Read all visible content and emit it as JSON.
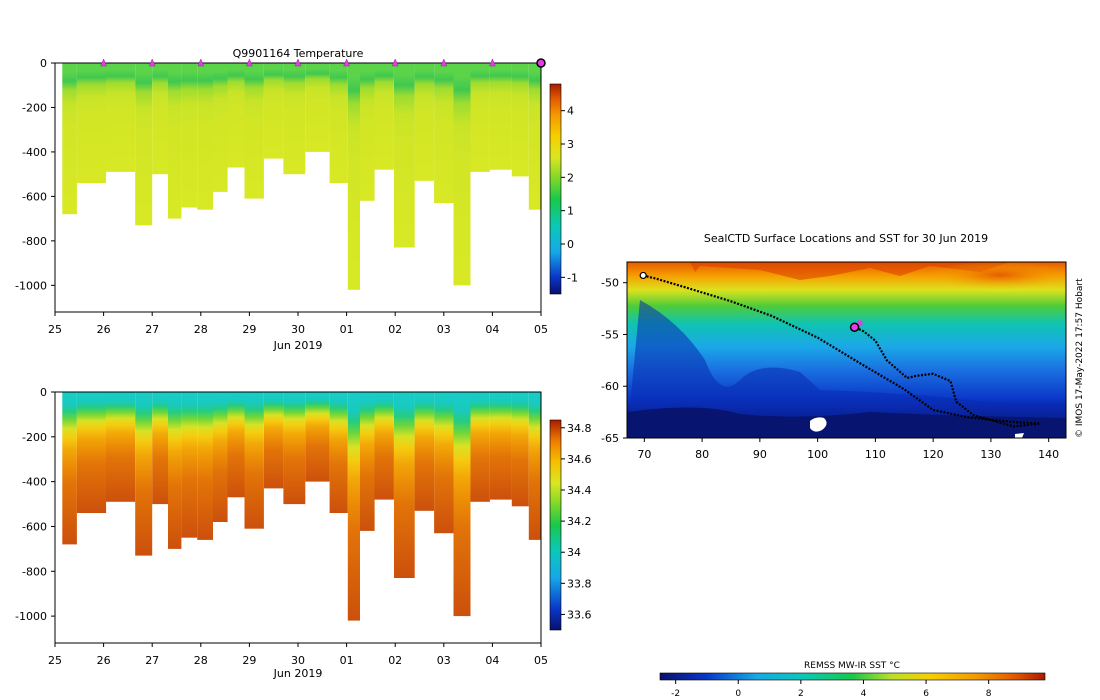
{
  "chart_data": [
    {
      "type": "heatmap",
      "name": "temperature-section",
      "title": "Q9901164  Temperature",
      "xlabel": "Jun 2019",
      "ylabel": "",
      "x_ticks": [
        "25",
        "26",
        "27",
        "28",
        "29",
        "30",
        "01",
        "02",
        "03",
        "04",
        "05"
      ],
      "y_ticks": [
        "0",
        "-200",
        "-400",
        "-600",
        "-800",
        "-1000"
      ],
      "xlim": [
        25,
        35
      ],
      "ylim": [
        -1120,
        0
      ],
      "colorbar": {
        "ticks": [
          "-1",
          "0",
          "1",
          "2",
          "3",
          "4"
        ],
        "range": [
          -1.5,
          4.8
        ]
      },
      "profile_marker_days": [
        26,
        27,
        28,
        29,
        30,
        31,
        32,
        33,
        34
      ],
      "latest_profile_day": 35,
      "max_depth_m": [
        {
          "day": 25.3,
          "depth": 680
        },
        {
          "day": 25.6,
          "depth": 540
        },
        {
          "day": 26.5,
          "depth": 490
        },
        {
          "day": 26.8,
          "depth": 730
        },
        {
          "day": 27.2,
          "depth": 500
        },
        {
          "day": 27.45,
          "depth": 700
        },
        {
          "day": 27.75,
          "depth": 650
        },
        {
          "day": 28.1,
          "depth": 660
        },
        {
          "day": 28.4,
          "depth": 580
        },
        {
          "day": 28.7,
          "depth": 470
        },
        {
          "day": 29.1,
          "depth": 610
        },
        {
          "day": 29.5,
          "depth": 430
        },
        {
          "day": 29.9,
          "depth": 500
        },
        {
          "day": 30.4,
          "depth": 400
        },
        {
          "day": 30.9,
          "depth": 540
        },
        {
          "day": 31.15,
          "depth": 1020
        },
        {
          "day": 31.4,
          "depth": 620
        },
        {
          "day": 31.75,
          "depth": 480
        },
        {
          "day": 32.2,
          "depth": 830
        },
        {
          "day": 32.6,
          "depth": 530
        },
        {
          "day": 33.0,
          "depth": 630
        },
        {
          "day": 33.4,
          "depth": 1000
        },
        {
          "day": 33.7,
          "depth": 490
        },
        {
          "day": 34.2,
          "depth": 480
        },
        {
          "day": 34.6,
          "depth": 510
        },
        {
          "day": 34.9,
          "depth": 660
        }
      ]
    },
    {
      "type": "heatmap",
      "name": "salinity-section",
      "title": "",
      "xlabel": "Jun 2019",
      "ylabel": "",
      "x_ticks": [
        "25",
        "26",
        "27",
        "28",
        "29",
        "30",
        "01",
        "02",
        "03",
        "04",
        "05"
      ],
      "y_ticks": [
        "0",
        "-200",
        "-400",
        "-600",
        "-800",
        "-1000"
      ],
      "xlim": [
        25,
        35
      ],
      "ylim": [
        -1120,
        0
      ],
      "colorbar": {
        "ticks": [
          "33.6",
          "33.8",
          "34",
          "34.2",
          "34.4",
          "34.6",
          "34.8"
        ],
        "range": [
          33.5,
          34.85
        ]
      }
    },
    {
      "type": "heatmap",
      "name": "sst-map",
      "title": "SealCTD Surface Locations and SST for 30 Jun 2019",
      "xlabel": "",
      "ylabel": "",
      "x_ticks": [
        "70",
        "80",
        "90",
        "100",
        "110",
        "120",
        "130",
        "140"
      ],
      "y_ticks": [
        "-50",
        "-55",
        "-60",
        "-65"
      ],
      "xlim": [
        67,
        143
      ],
      "ylim": [
        -65,
        -48
      ],
      "colorbar": {
        "label": "REMSS MW-IR SST °C",
        "ticks": [
          "-2",
          "0",
          "2",
          "4",
          "6",
          "8"
        ],
        "range": [
          -2.5,
          9.8
        ]
      },
      "credit": "© IMOS 17-May-2022 17:57 Hobart",
      "current_location": {
        "lon": 106.4,
        "lat": -54.3
      },
      "track": [
        {
          "lon": 69.8,
          "lat": -49.3
        },
        {
          "lon": 72,
          "lat": -49.6
        },
        {
          "lon": 78,
          "lat": -50.6
        },
        {
          "lon": 85,
          "lat": -51.8
        },
        {
          "lon": 92,
          "lat": -53.2
        },
        {
          "lon": 100,
          "lat": -55.3
        },
        {
          "lon": 108,
          "lat": -58
        },
        {
          "lon": 115,
          "lat": -60.3
        },
        {
          "lon": 120,
          "lat": -62.3
        },
        {
          "lon": 126,
          "lat": -63
        },
        {
          "lon": 131,
          "lat": -63.3
        },
        {
          "lon": 135,
          "lat": -63.5
        },
        {
          "lon": 138.5,
          "lat": -63.6
        },
        {
          "lon": 134,
          "lat": -63.9
        },
        {
          "lon": 127,
          "lat": -62.8
        },
        {
          "lon": 124,
          "lat": -61.5
        },
        {
          "lon": 123,
          "lat": -59.5
        },
        {
          "lon": 120,
          "lat": -58.8
        },
        {
          "lon": 117,
          "lat": -59
        },
        {
          "lon": 115.5,
          "lat": -59.2
        },
        {
          "lon": 112,
          "lat": -57.5
        },
        {
          "lon": 110,
          "lat": -55.6
        },
        {
          "lon": 108,
          "lat": -54.7
        },
        {
          "lon": 106.4,
          "lat": -54.3
        }
      ]
    }
  ]
}
